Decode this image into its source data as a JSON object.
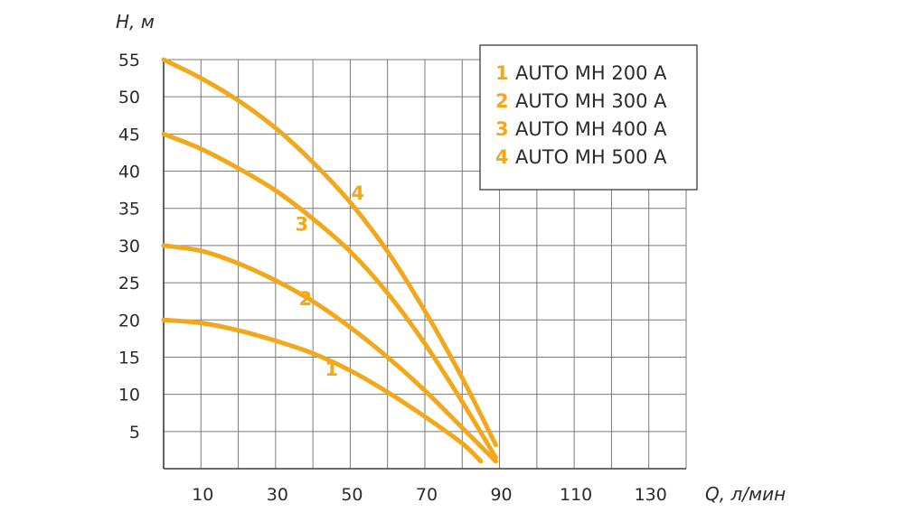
{
  "chart_data": {
    "type": "line",
    "xlabel": "Q, л/мин",
    "ylabel": "H, м",
    "xlim": [
      0,
      140
    ],
    "ylim": [
      0,
      55
    ],
    "x_ticks": [
      10,
      30,
      50,
      70,
      90,
      110,
      130
    ],
    "y_ticks": [
      5,
      10,
      15,
      20,
      25,
      30,
      35,
      40,
      45,
      50,
      55
    ],
    "grid": true,
    "legend_position": "top-right",
    "color": "#f2a81d",
    "series": [
      {
        "number": "1",
        "name": "AUTO MH 200 A",
        "x": [
          0,
          10,
          20,
          30,
          40,
          50,
          60,
          70,
          80,
          85
        ],
        "y": [
          20,
          19.6,
          18.6,
          17.2,
          15.5,
          13.2,
          10.3,
          7,
          3.4,
          1
        ]
      },
      {
        "number": "2",
        "name": "AUTO MH 300 A",
        "x": [
          0,
          10,
          20,
          30,
          40,
          50,
          60,
          70,
          80,
          89
        ],
        "y": [
          30,
          29.3,
          27.6,
          25.3,
          22.5,
          19,
          15,
          10.5,
          5.5,
          1
        ]
      },
      {
        "number": "3",
        "name": "AUTO MH 400 A",
        "x": [
          0,
          10,
          20,
          30,
          40,
          50,
          60,
          70,
          80,
          89
        ],
        "y": [
          45,
          43,
          40.4,
          37.4,
          33.6,
          29.2,
          23.6,
          16.8,
          9,
          1.5
        ]
      },
      {
        "number": "4",
        "name": "AUTO MH 500 A",
        "x": [
          0,
          10,
          20,
          30,
          40,
          50,
          60,
          70,
          80,
          89
        ],
        "y": [
          55,
          52.5,
          49.5,
          45.8,
          41.2,
          35.8,
          29.2,
          21.2,
          12.2,
          3.2
        ]
      }
    ]
  }
}
